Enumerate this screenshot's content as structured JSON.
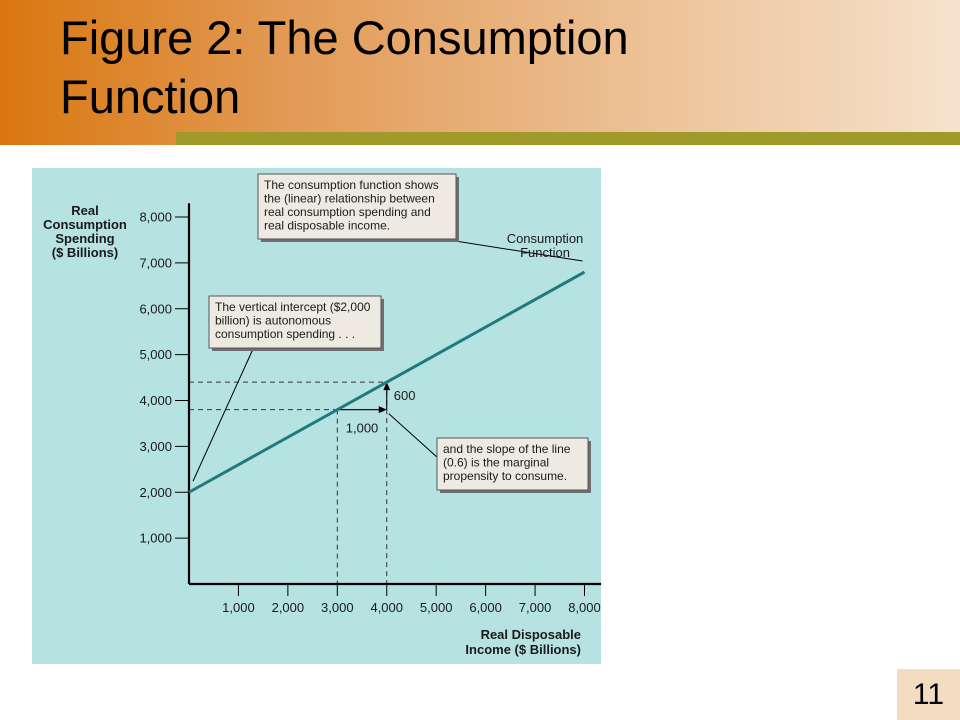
{
  "slide": {
    "title_line1": "Figure 2:  The Consumption",
    "title_line2": "Function",
    "page_number": "11"
  },
  "colors": {
    "banner_start": "#d9770f",
    "banner_end": "#f6e2cc",
    "banner_bar": "#a09a2a",
    "panel": "#b6e2e2",
    "line": "#1e7a7c",
    "callout": "#eeeae2",
    "page_badge": "#f3dcc1"
  },
  "chart_data": {
    "type": "line",
    "ylabel": [
      "Real",
      "Consumption",
      "Spending",
      "($ Billions)"
    ],
    "xlabel": [
      "Real Disposable",
      "Income ($ Billions)"
    ],
    "xlim": [
      0,
      8500
    ],
    "ylim": [
      0,
      8300
    ],
    "x_ticks": [
      1000,
      2000,
      3000,
      4000,
      5000,
      6000,
      7000,
      8000
    ],
    "x_tick_labels": [
      "1,000",
      "2,000",
      "3,000",
      "4,000",
      "5,000",
      "6,000",
      "7,000",
      "8,000"
    ],
    "y_ticks": [
      1000,
      2000,
      3000,
      4000,
      5000,
      6000,
      7000,
      8000
    ],
    "y_tick_labels": [
      "1,000",
      "2,000",
      "3,000",
      "4,000",
      "5,000",
      "6,000",
      "7,000",
      "8,000"
    ],
    "grid": false,
    "series": [
      {
        "name": "Consumption Function",
        "x": [
          0,
          8000
        ],
        "y": [
          2000,
          6800
        ]
      }
    ],
    "series_label": [
      "Consumption",
      "Function"
    ],
    "guide_points": [
      {
        "x": 3000,
        "y": 3800
      },
      {
        "x": 4000,
        "y": 4400
      }
    ],
    "run_label": "1,000",
    "rise_label": "600",
    "annotations": [
      {
        "id": "top",
        "lines": [
          "The consumption function shows",
          "the (linear) relationship between",
          "real consumption spending and",
          "real disposable income."
        ]
      },
      {
        "id": "intercept",
        "lines": [
          "The vertical intercept ($2,000",
          "billion) is autonomous",
          "consumption spending . . ."
        ]
      },
      {
        "id": "slope",
        "lines": [
          "and the slope of the line",
          "(0.6) is the marginal",
          "propensity to consume."
        ]
      }
    ]
  }
}
